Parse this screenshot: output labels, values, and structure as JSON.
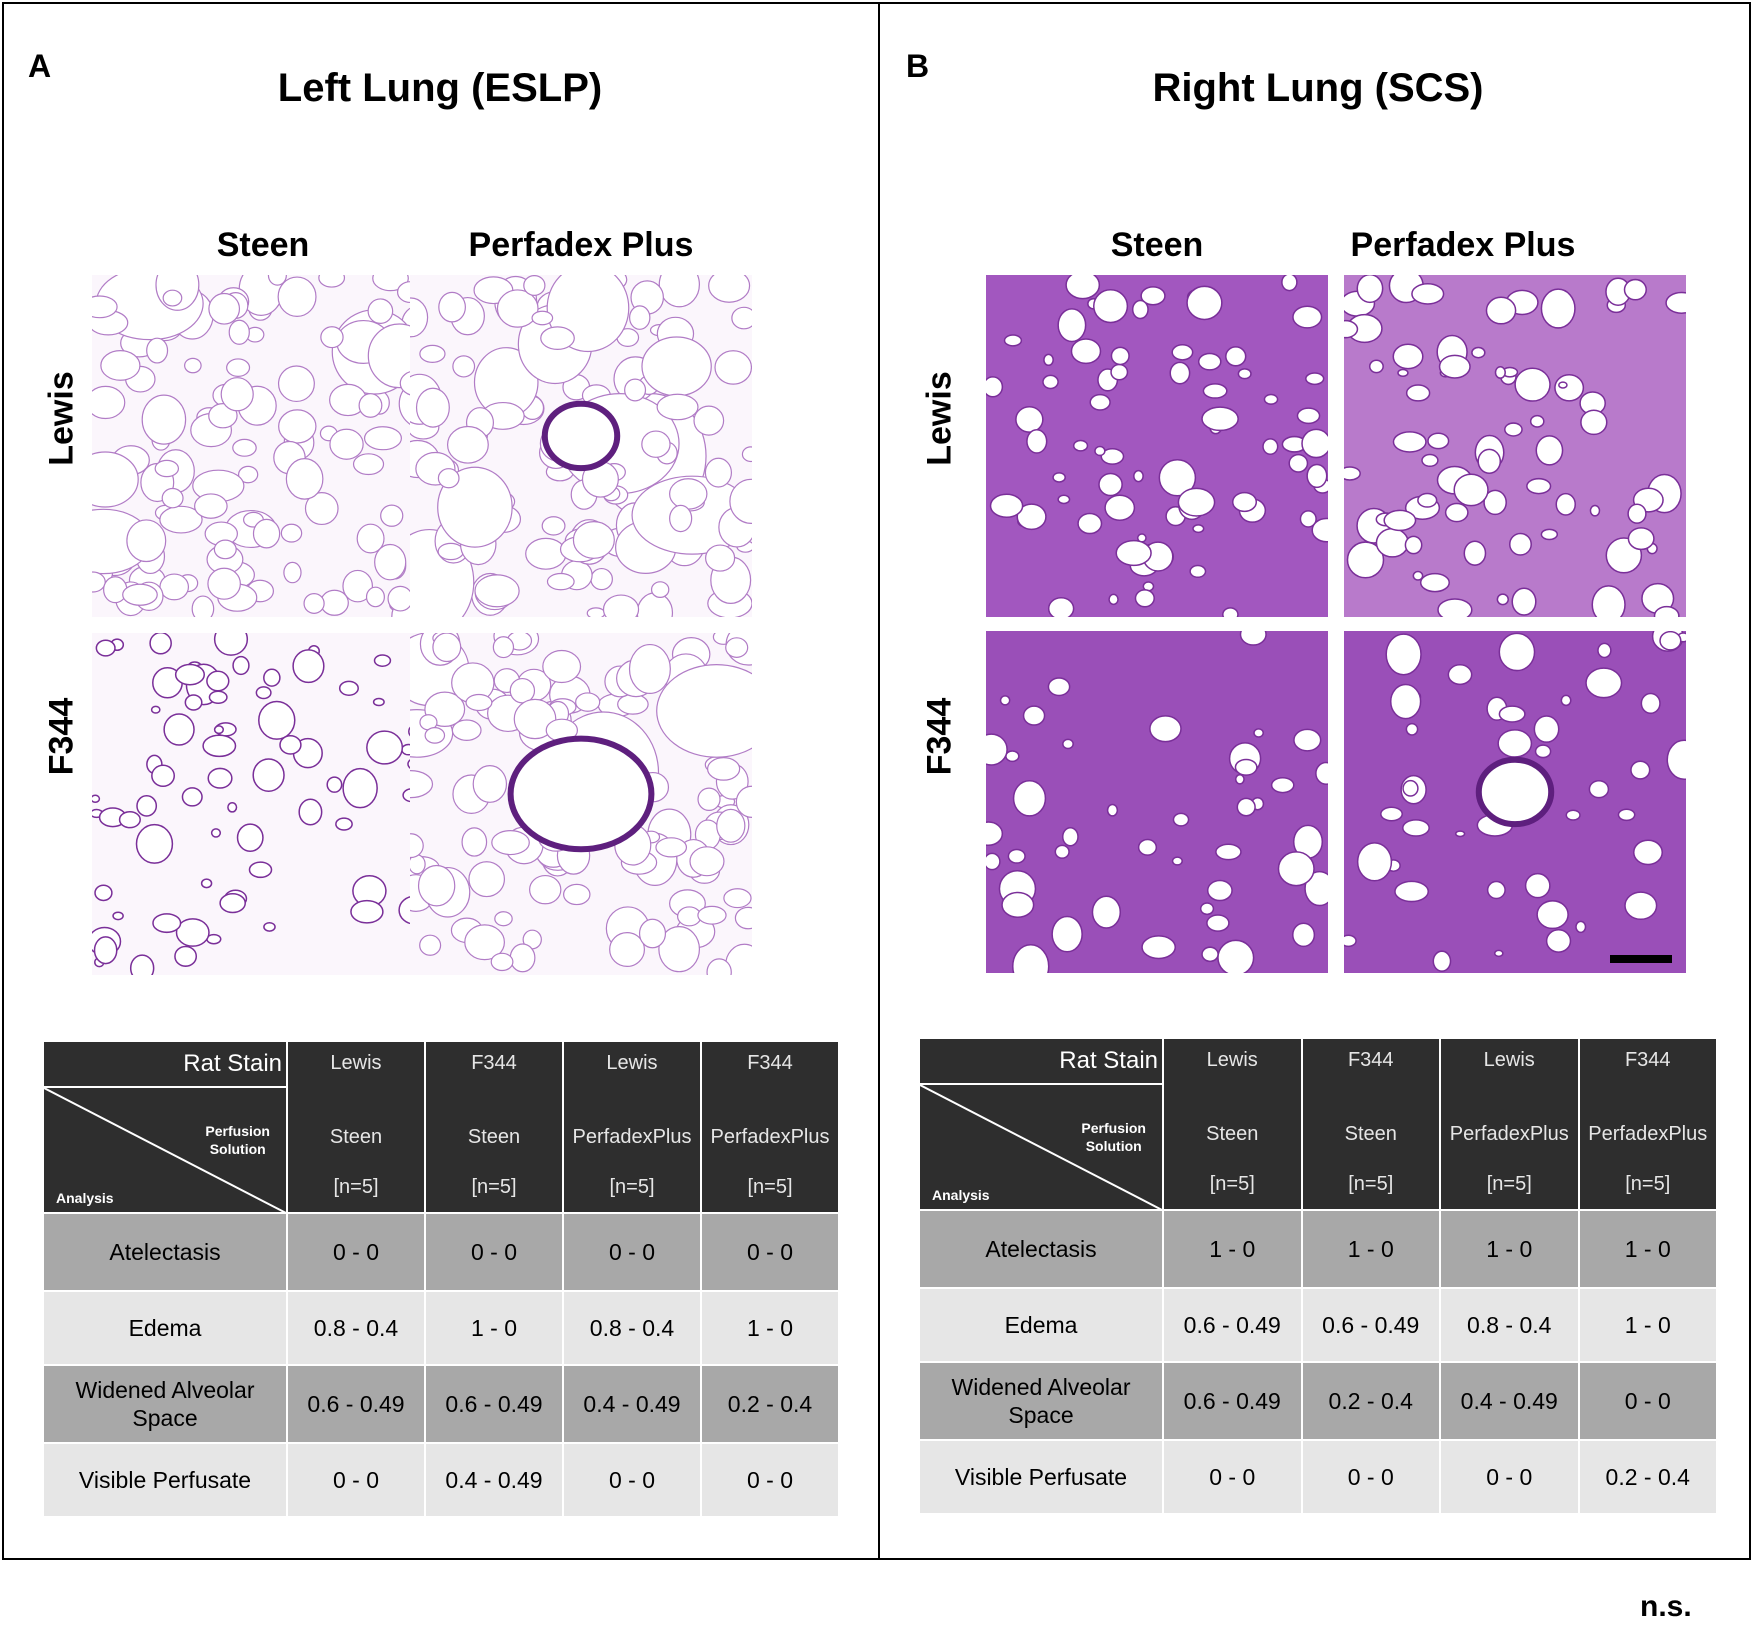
{
  "panels": [
    {
      "letter": "A",
      "title": "Left Lung (ESLP)",
      "col_headers": [
        "Steen",
        "Perfadex Plus"
      ],
      "row_headers": [
        "Lewis",
        "F344"
      ],
      "table": {
        "corner": {
          "rat_stain": "Rat Stain",
          "perfusion_line1": "Perfusion",
          "perfusion_line2": "Solution",
          "analysis": "Analysis"
        },
        "columns": [
          {
            "strain": "Lewis",
            "solution": "Steen",
            "n": "[n=5]"
          },
          {
            "strain": "F344",
            "solution": "Steen",
            "n": "[n=5]"
          },
          {
            "strain": "Lewis",
            "solution": "PerfadexPlus",
            "n": "[n=5]"
          },
          {
            "strain": "F344",
            "solution": "PerfadexPlus",
            "n": "[n=5]"
          }
        ],
        "rows": [
          {
            "label": "Atelectasis",
            "values": [
              "0 -  0",
              "0 -  0",
              "0 -  0",
              "0 -  0"
            ]
          },
          {
            "label": "Edema",
            "values": [
              "0.8 -  0.4",
              "1 -  0",
              "0.8 -  0.4",
              "1 -  0"
            ]
          },
          {
            "label": "Widened Alveolar Space",
            "values": [
              "0.6 -  0.49",
              "0.6 -  0.49",
              "0.4 -  0.49",
              "0.2 -  0.4"
            ]
          },
          {
            "label": "Visible Perfusate",
            "values": [
              "0 -  0",
              "0.4 -  0.49",
              "0 -  0",
              "0 -  0"
            ]
          }
        ]
      }
    },
    {
      "letter": "B",
      "title": "Right Lung (SCS)",
      "col_headers": [
        "Steen",
        "Perfadex Plus"
      ],
      "row_headers": [
        "Lewis",
        "F344"
      ],
      "table": {
        "corner": {
          "rat_stain": "Rat Stain",
          "perfusion_line1": "Perfusion",
          "perfusion_line2": "Solution",
          "analysis": "Analysis"
        },
        "columns": [
          {
            "strain": "Lewis",
            "solution": "Steen",
            "n": "[n=5]"
          },
          {
            "strain": "F344",
            "solution": "Steen",
            "n": "[n=5]"
          },
          {
            "strain": "Lewis",
            "solution": "PerfadexPlus",
            "n": "[n=5]"
          },
          {
            "strain": "F344",
            "solution": "PerfadexPlus",
            "n": "[n=5]"
          }
        ],
        "rows": [
          {
            "label": "Atelectasis",
            "values": [
              "1 -  0",
              "1 -  0",
              "1 -  0",
              "1 -  0"
            ]
          },
          {
            "label": "Edema",
            "values": [
              "0.6 -  0.49",
              "0.6 -  0.49",
              "0.8 -  0.4",
              "1 -  0"
            ]
          },
          {
            "label": "Widened Alveolar Space",
            "values": [
              "0.6 -  0.49",
              "0.2 -  0.4",
              "0.4 -  0.49",
              "0 -  0"
            ]
          },
          {
            "label": "Visible Perfusate",
            "values": [
              "0 -  0",
              "0 -  0",
              "0 -  0",
              "0.2 -  0.4"
            ]
          }
        ]
      }
    }
  ],
  "footer_note": "n.s.",
  "colors": {
    "header_dark": "#2e2e2e",
    "row_dark": "#a8a8a8",
    "row_light": "#e6e6e6",
    "stain_light": "#c79ad6",
    "stain_dense": "#8b3fa8"
  }
}
